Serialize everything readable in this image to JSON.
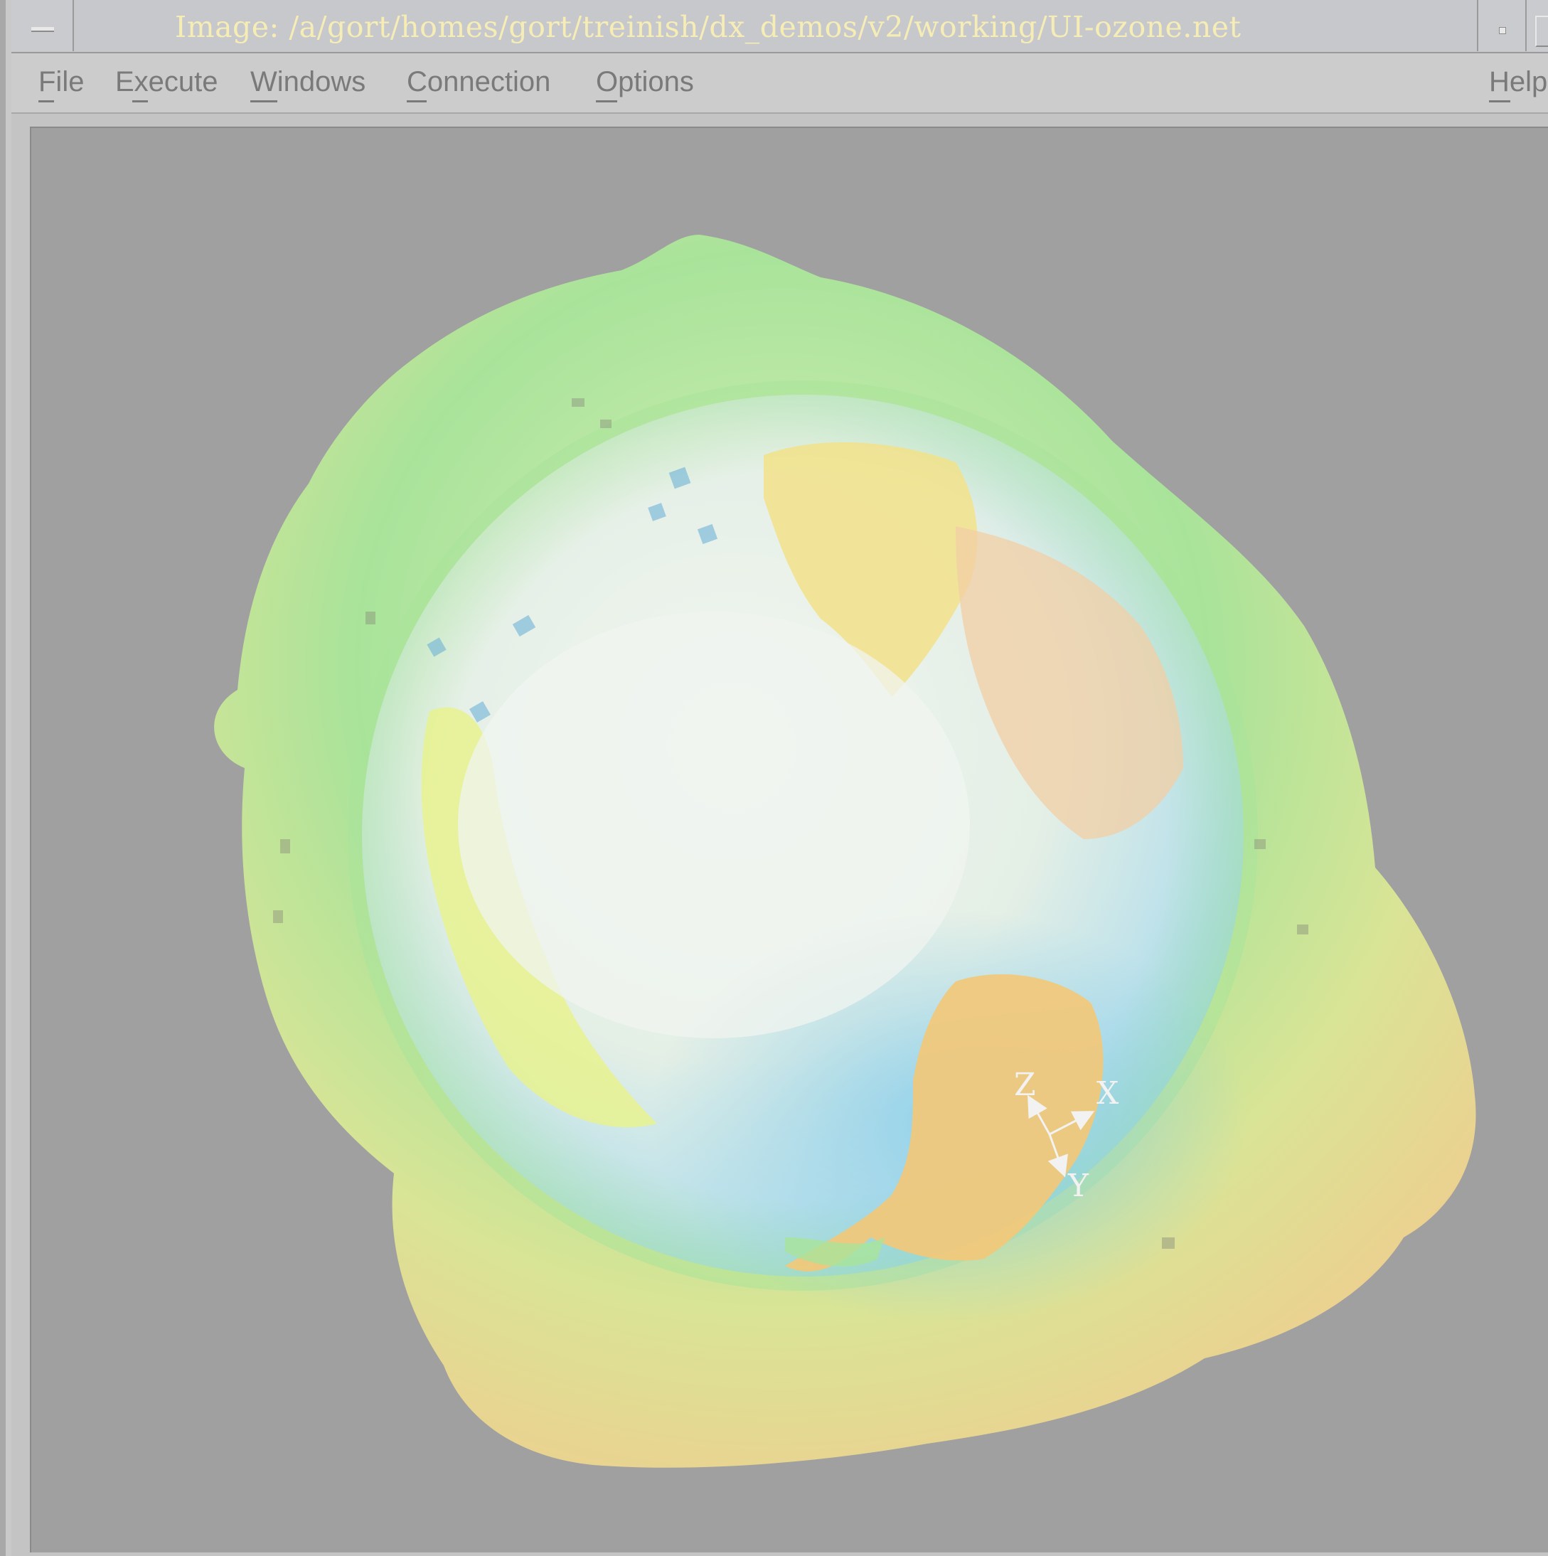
{
  "window": {
    "title": "Image: /a/gort/homes/gort/treinish/dx_demos/v2/working/UI-ozone.net"
  },
  "menubar": {
    "items": [
      {
        "label": "File",
        "mnemonic": "F"
      },
      {
        "label": "Execute",
        "mnemonic": "x"
      },
      {
        "label": "Windows",
        "mnemonic": "W"
      },
      {
        "label": "Connection",
        "mnemonic": "C"
      },
      {
        "label": "Options",
        "mnemonic": "O"
      }
    ],
    "help": {
      "label": "Help",
      "mnemonic": "H"
    }
  },
  "viewer": {
    "axes": {
      "x": "X",
      "y": "Y",
      "z": "Z"
    },
    "colors": {
      "background": "#a0a0a0",
      "ozone_low": "#f3c98d",
      "ozone_mid": "#a9e39a",
      "ocean": "#8fd0ea",
      "cloud": "#f0f4f0",
      "land": "#f2e28a"
    }
  },
  "icons": {
    "window_menu": "window-menu-icon",
    "minimize": "minimize-icon",
    "maximize": "maximize-icon"
  }
}
